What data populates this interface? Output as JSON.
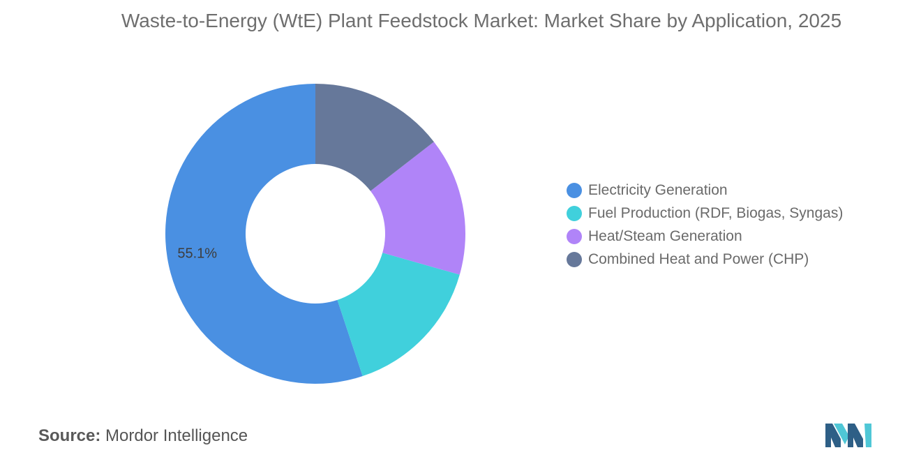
{
  "title": "Waste-to-Energy (WtE) Plant Feedstock Market: Market Share by Application, 2025",
  "chart_data": {
    "type": "pie",
    "style": "donut",
    "title": "Waste-to-Energy (WtE) Plant Feedstock Market: Market Share by Application, 2025",
    "unit": "%",
    "legend_position": "right",
    "categories": [
      "Electricity Generation",
      "Fuel Production (RDF, Biogas, Syngas)",
      "Heat/Steam Generation",
      "Combined Heat and Power (CHP)"
    ],
    "values": [
      55.1,
      15.5,
      14.9,
      14.5
    ],
    "colors": [
      "#4a90e2",
      "#40d0dc",
      "#b084f8",
      "#66789a"
    ],
    "data_labels": [
      "55.1%",
      "",
      "",
      ""
    ]
  },
  "source": {
    "label": "Source:",
    "text": "Mordor Intelligence"
  },
  "logo": {
    "icon": "mordor-intelligence-logo-icon",
    "colors": [
      "#2e5f86",
      "#4fc7d6"
    ]
  }
}
